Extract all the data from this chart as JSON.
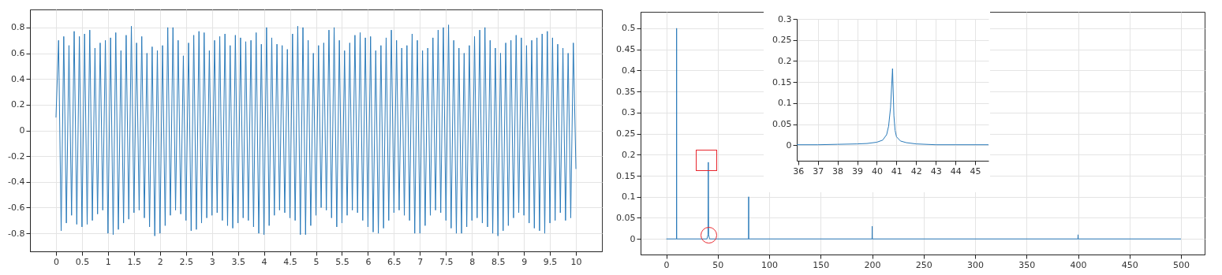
{
  "chart_data": [
    {
      "type": "line",
      "xlim": [
        -0.5,
        10.5
      ],
      "ylim": [
        -0.94,
        0.94
      ],
      "xticks": [
        0,
        0.5,
        1,
        1.5,
        2,
        2.5,
        3,
        3.5,
        4,
        4.5,
        5,
        5.5,
        6,
        6.5,
        7,
        7.5,
        8,
        8.5,
        9,
        9.5,
        10
      ],
      "yticks": [
        -0.8,
        -0.6,
        -0.4,
        -0.2,
        0,
        0.2,
        0.4,
        0.6,
        0.8
      ],
      "grid": true,
      "x": [
        0,
        0.05,
        0.1,
        0.15,
        0.2,
        0.25,
        0.3,
        0.35,
        0.4,
        0.45,
        0.5,
        0.55,
        0.6,
        0.65,
        0.7,
        0.75,
        0.8,
        0.85,
        0.9,
        0.95,
        1,
        1.05,
        1.1,
        1.15,
        1.2,
        1.25,
        1.3,
        1.35,
        1.4,
        1.45,
        1.5,
        1.55,
        1.6,
        1.65,
        1.7,
        1.75,
        1.8,
        1.85,
        1.9,
        1.95,
        2,
        2.05,
        2.1,
        2.15,
        2.2,
        2.25,
        2.3,
        2.35,
        2.4,
        2.45,
        2.5,
        2.55,
        2.6,
        2.65,
        2.7,
        2.75,
        2.8,
        2.85,
        2.9,
        2.95,
        3,
        3.05,
        3.1,
        3.15,
        3.2,
        3.25,
        3.3,
        3.35,
        3.4,
        3.45,
        3.5,
        3.55,
        3.6,
        3.65,
        3.7,
        3.75,
        3.8,
        3.85,
        3.9,
        3.95,
        4,
        4.05,
        4.1,
        4.15,
        4.2,
        4.25,
        4.3,
        4.35,
        4.4,
        4.45,
        4.5,
        4.55,
        4.6,
        4.65,
        4.7,
        4.75,
        4.8,
        4.85,
        4.9,
        4.95,
        5,
        5.05,
        5.1,
        5.15,
        5.2,
        5.25,
        5.3,
        5.35,
        5.4,
        5.45,
        5.5,
        5.55,
        5.6,
        5.65,
        5.7,
        5.75,
        5.8,
        5.85,
        5.9,
        5.95,
        6,
        6.05,
        6.1,
        6.15,
        6.2,
        6.25,
        6.3,
        6.35,
        6.4,
        6.45,
        6.5,
        6.55,
        6.6,
        6.65,
        6.7,
        6.75,
        6.8,
        6.85,
        6.9,
        6.95,
        7,
        7.05,
        7.1,
        7.15,
        7.2,
        7.25,
        7.3,
        7.35,
        7.4,
        7.45,
        7.5,
        7.55,
        7.6,
        7.65,
        7.7,
        7.75,
        7.8,
        7.85,
        7.9,
        7.95,
        8,
        8.05,
        8.1,
        8.15,
        8.2,
        8.25,
        8.3,
        8.35,
        8.4,
        8.45,
        8.5,
        8.55,
        8.6,
        8.65,
        8.7,
        8.75,
        8.8,
        8.85,
        8.9,
        8.95,
        9,
        9.05,
        9.1,
        9.15,
        9.2,
        9.25,
        9.3,
        9.35,
        9.4,
        9.45,
        9.5,
        9.55,
        9.6,
        9.65,
        9.7,
        9.75,
        9.8,
        9.85,
        9.9,
        9.95,
        10
      ],
      "series": [
        {
          "color": "#2b7bba",
          "values": [
            0.1,
            0.7,
            -0.78,
            0.73,
            -0.72,
            0.66,
            -0.66,
            0.77,
            -0.73,
            0.73,
            -0.75,
            0.75,
            -0.73,
            0.78,
            -0.7,
            0.64,
            -0.65,
            0.68,
            -0.62,
            0.7,
            -0.8,
            0.72,
            -0.81,
            0.76,
            -0.77,
            0.62,
            -0.72,
            0.74,
            -0.69,
            0.81,
            -0.64,
            0.68,
            -0.62,
            0.73,
            -0.68,
            0.6,
            -0.75,
            0.65,
            -0.82,
            0.62,
            -0.8,
            0.66,
            -0.74,
            0.8,
            -0.66,
            0.8,
            -0.62,
            0.7,
            -0.65,
            0.58,
            -0.7,
            0.68,
            -0.78,
            0.74,
            -0.77,
            0.77,
            -0.72,
            0.76,
            -0.68,
            0.62,
            -0.66,
            0.7,
            -0.64,
            0.73,
            -0.7,
            0.75,
            -0.74,
            0.66,
            -0.76,
            0.74,
            -0.72,
            0.72,
            -0.68,
            0.69,
            -0.7,
            0.7,
            -0.75,
            0.76,
            -0.8,
            0.67,
            -0.81,
            0.8,
            -0.74,
            0.72,
            -0.66,
            0.67,
            -0.62,
            0.66,
            -0.64,
            0.63,
            -0.68,
            0.75,
            -0.7,
            0.81,
            -0.81,
            0.8,
            -0.81,
            0.7,
            -0.74,
            0.6,
            -0.66,
            0.66,
            -0.6,
            0.68,
            -0.62,
            0.78,
            -0.68,
            0.8,
            -0.75,
            0.7,
            -0.72,
            0.62,
            -0.66,
            0.68,
            -0.62,
            0.74,
            -0.64,
            0.76,
            -0.7,
            0.72,
            -0.75,
            0.73,
            -0.79,
            0.62,
            -0.8,
            0.66,
            -0.76,
            0.72,
            -0.7,
            0.78,
            -0.64,
            0.7,
            -0.62,
            0.64,
            -0.66,
            0.66,
            -0.7,
            0.75,
            -0.8,
            0.7,
            -0.8,
            0.62,
            -0.74,
            0.64,
            -0.66,
            0.72,
            -0.62,
            0.78,
            -0.64,
            0.8,
            -0.7,
            0.82,
            -0.76,
            0.7,
            -0.8,
            0.64,
            -0.8,
            0.6,
            -0.75,
            0.66,
            -0.7,
            0.73,
            -0.68,
            0.78,
            -0.72,
            0.8,
            -0.75,
            0.7,
            -0.8,
            0.64,
            -0.82,
            0.6,
            -0.78,
            0.68,
            -0.74,
            0.7,
            -0.68,
            0.74,
            -0.64,
            0.72,
            -0.66,
            0.66,
            -0.72,
            0.7,
            -0.76,
            0.72,
            -0.78,
            0.75,
            -0.8,
            0.77,
            -0.72,
            0.72,
            -0.7,
            0.67,
            -0.64,
            0.64,
            -0.7,
            0.6,
            -0.68,
            0.68,
            -0.3
          ]
        }
      ]
    },
    {
      "type": "line",
      "xlim": [
        -25,
        523
      ],
      "ylim": [
        -0.037,
        0.539
      ],
      "xticks": [
        0,
        50,
        100,
        150,
        200,
        250,
        300,
        350,
        400,
        450,
        500
      ],
      "yticks": [
        0,
        0.05,
        0.1,
        0.15,
        0.2,
        0.25,
        0.3,
        0.35,
        0.4,
        0.45,
        0.5
      ],
      "grid": true,
      "x": [
        0,
        9.9,
        10,
        10.1,
        39.5,
        40.5,
        40.8,
        41.1,
        42,
        79.9,
        80,
        80.1,
        199.9,
        200,
        200.1,
        399.9,
        400,
        400.1,
        500
      ],
      "series": [
        {
          "color": "#2b7bba",
          "values": [
            0,
            0,
            0.5,
            0,
            0,
            0.01,
            0.182,
            0.01,
            0,
            0,
            0.1,
            0,
            0,
            0.03,
            0,
            0,
            0.01,
            0,
            0
          ]
        }
      ]
    },
    {
      "type": "line",
      "xlim": [
        35.93,
        45.68
      ],
      "ylim": [
        -0.037,
        0.3
      ],
      "xticks": [
        36,
        37,
        38,
        39,
        40,
        41,
        42,
        43,
        44,
        45
      ],
      "yticks": [
        0,
        0.05,
        0.1,
        0.15,
        0.2,
        0.25,
        0.3
      ],
      "grid": true,
      "x": [
        35.93,
        37,
        38,
        39,
        39.5,
        40,
        40.3,
        40.5,
        40.6,
        40.7,
        40.8,
        40.87,
        40.93,
        41,
        41.2,
        41.5,
        42,
        43,
        44,
        45.68
      ],
      "series": [
        {
          "color": "#2b7bba",
          "values": [
            0.001,
            0.001,
            0.002,
            0.003,
            0.004,
            0.007,
            0.012,
            0.025,
            0.045,
            0.09,
            0.182,
            0.07,
            0.035,
            0.02,
            0.01,
            0.006,
            0.003,
            0.001,
            0.001,
            0.001
          ]
        }
      ]
    }
  ]
}
